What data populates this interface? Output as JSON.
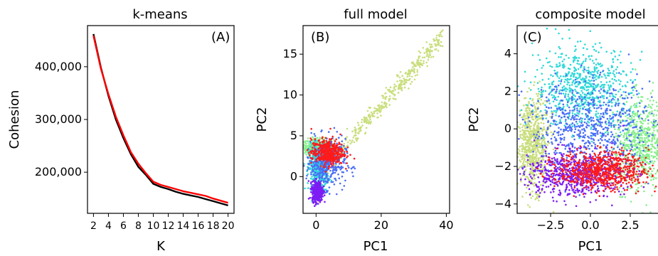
{
  "figure": {
    "panels": [
      "k-means",
      "full model",
      "composite model"
    ]
  },
  "chart_data": [
    {
      "type": "line",
      "panel_label": "(A)",
      "title": "k-means",
      "xlabel": "K",
      "ylabel": "Cohesion",
      "x": [
        2,
        3,
        4,
        5,
        6,
        7,
        8,
        9,
        10,
        11,
        12,
        13,
        14,
        15,
        16,
        17,
        18,
        19,
        20
      ],
      "xticks": [
        2,
        4,
        6,
        8,
        10,
        12,
        14,
        16,
        18,
        20
      ],
      "xtick_labels": [
        "2",
        "4",
        "6",
        "8",
        "10",
        "12",
        "14",
        "16",
        "18",
        "20"
      ],
      "yticks": [
        200000,
        300000,
        400000
      ],
      "ytick_labels": [
        "200,000",
        "300,000",
        "400,000"
      ],
      "xlim": [
        1.2,
        20.8
      ],
      "ylim": [
        122000,
        478000
      ],
      "series": [
        {
          "color": "#000000",
          "values": [
            462000,
            398000,
            345000,
            300000,
            265000,
            234000,
            210000,
            195000,
            178000,
            172000,
            168000,
            163000,
            159000,
            156000,
            153000,
            149000,
            145000,
            141000,
            137000
          ]
        },
        {
          "color": "#ff0000",
          "values": [
            459000,
            396000,
            348000,
            305000,
            270000,
            238000,
            216000,
            198000,
            182000,
            176000,
            172000,
            168000,
            164000,
            161000,
            158000,
            155000,
            150000,
            146000,
            142000
          ]
        }
      ]
    },
    {
      "type": "scatter",
      "panel_label": "(B)",
      "title": "full model",
      "xlabel": "PC1",
      "ylabel": "PC2",
      "xticks": [
        0,
        20,
        40
      ],
      "xtick_labels": [
        "0",
        "20",
        "40"
      ],
      "yticks": [
        0,
        5,
        10,
        15
      ],
      "ytick_labels": [
        "0",
        "5",
        "10",
        "15"
      ],
      "xlim": [
        -4,
        41
      ],
      "ylim": [
        -4.5,
        18.5
      ],
      "clusters": [
        {
          "color": "#88f08c",
          "center": [
            0.5,
            3.6
          ],
          "spread": [
            2.5,
            0.5
          ]
        },
        {
          "color": "#c9de7d",
          "trend": {
            "x_range": [
              3,
              39
            ],
            "y_at_x": [
              1,
              17.3
            ]
          }
        },
        {
          "color": "#2fd8d8",
          "center": [
            0.8,
            1.0
          ],
          "spread": [
            1.5,
            1.4
          ]
        },
        {
          "color": "#4a6cf7",
          "center": [
            3.0,
            1.6
          ],
          "spread": [
            3.0,
            1.5
          ]
        },
        {
          "color": "#7d1cf3",
          "center": [
            0.4,
            -1.8
          ],
          "spread": [
            0.8,
            0.6
          ]
        },
        {
          "color": "#ff1a1a",
          "center": [
            3.5,
            3.0
          ],
          "spread": [
            2.5,
            0.8
          ]
        }
      ]
    },
    {
      "type": "scatter",
      "panel_label": "(C)",
      "title": "composite model",
      "xlabel": "PC1",
      "ylabel": "PC2",
      "xticks": [
        -2.5,
        0.0,
        2.5
      ],
      "xtick_labels": [
        "−2.5",
        "0.0",
        "2.5"
      ],
      "yticks": [
        -4,
        -2,
        0,
        2,
        4
      ],
      "ytick_labels": [
        "−4",
        "−2",
        "0",
        "2",
        "4"
      ],
      "xlim": [
        -4.6,
        4.6
      ],
      "ylim": [
        -4.5,
        5.5
      ],
      "clusters": [
        {
          "color": "#88f08c",
          "center": [
            3.2,
            -0.8
          ],
          "spread": [
            0.9,
            1.2
          ]
        },
        {
          "color": "#c9de7d",
          "center": [
            -3.6,
            -0.8
          ],
          "spread": [
            0.5,
            1.2
          ]
        },
        {
          "color": "#2fd8d8",
          "center": [
            -0.5,
            2.2
          ],
          "spread": [
            1.5,
            1.1
          ]
        },
        {
          "color": "#4a6cf7",
          "center": [
            0.0,
            0.0
          ],
          "spread": [
            2.0,
            1.2
          ]
        },
        {
          "color": "#7d1cf3",
          "center": [
            -1.0,
            -2.4
          ],
          "spread": [
            1.6,
            0.6
          ]
        },
        {
          "color": "#ff1a1a",
          "center": [
            0.8,
            -2.2
          ],
          "spread": [
            1.4,
            0.5
          ]
        }
      ]
    }
  ]
}
